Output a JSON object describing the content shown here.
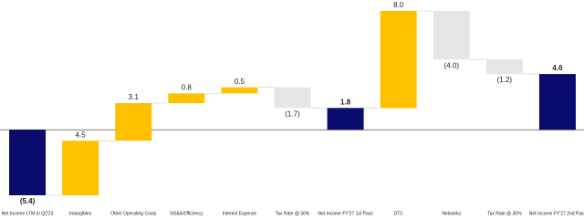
{
  "chart_data": {
    "type": "waterfall",
    "categories": [
      "Net Income LTM to Q2'23",
      "Intangibles",
      "Other Operating Costs",
      "SG&A Efficiency",
      "Interest Expense",
      "Tax Rate @ 30%",
      "Net Income FY'27 1st Pass",
      "DTC",
      "Networks",
      "Tax Rate @ 30%",
      "Net Income FY'27 2nd Pass"
    ],
    "values": [
      -5.4,
      4.5,
      3.1,
      0.8,
      0.5,
      -1.7,
      1.8,
      8.0,
      -4.0,
      -1.2,
      4.6
    ],
    "value_labels": [
      "(5.4)",
      "4.5",
      "3.1",
      "0.8",
      "0.5",
      "(1.7)",
      "1.8",
      "8.0",
      "(4.0)",
      "(1.2)",
      "4.6"
    ],
    "is_total": [
      true,
      false,
      false,
      false,
      false,
      false,
      true,
      false,
      false,
      false,
      true
    ],
    "colors": {
      "total": "#0b0b6e",
      "increase": "#ffc000",
      "decrease": "#e6e6e6"
    }
  }
}
